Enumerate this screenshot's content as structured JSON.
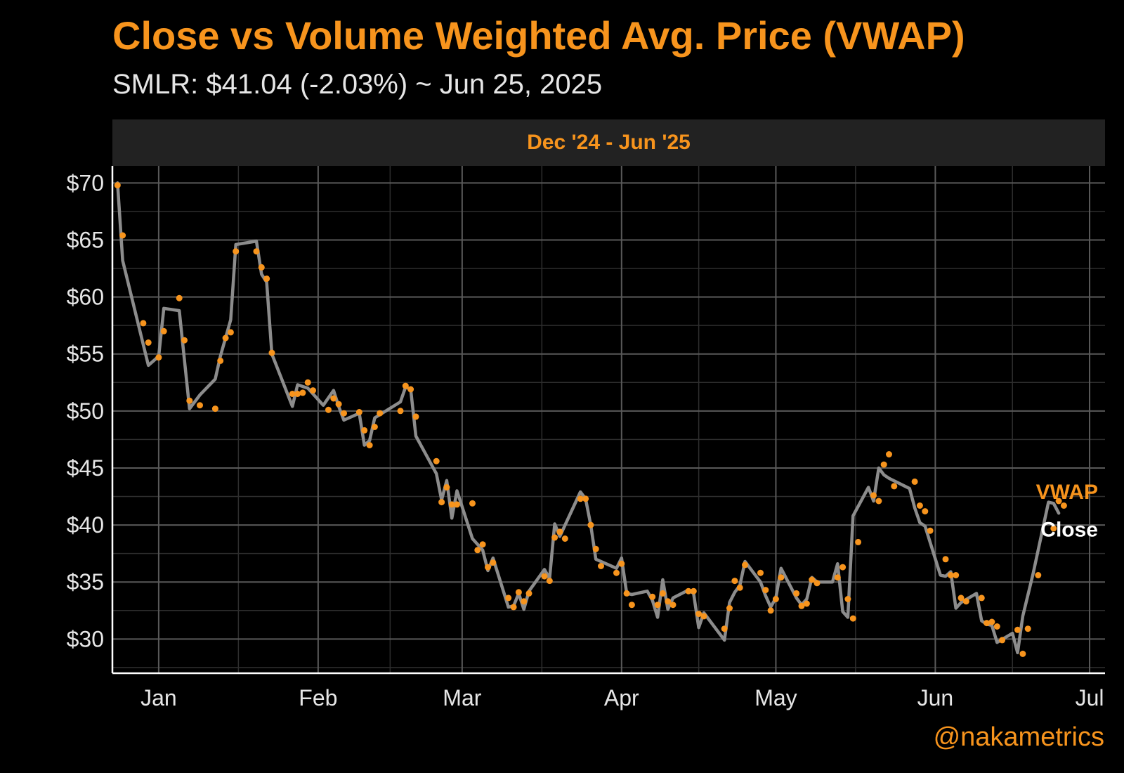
{
  "header": {
    "title": "Close vs Volume Weighted Avg. Price (VWAP)",
    "subtitle": "SMLR: $41.04 (-2.03%) ~ Jun 25, 2025",
    "facet_label": "Dec '24 - Jun '25",
    "watermark": "@nakametrics"
  },
  "colors": {
    "background": "#000000",
    "accent": "#f7941d",
    "close_line": "#8c8c8c",
    "grid_major": "#595959",
    "grid_minor": "#2e2e2e",
    "text": "#e6e6e6"
  },
  "chart_data": {
    "type": "line",
    "ylim": [
      27,
      71.5
    ],
    "xlim": [
      "2024-12-23",
      "2025-07-04"
    ],
    "y_ticks": [
      {
        "value": 30,
        "label": "$30"
      },
      {
        "value": 35,
        "label": "$35"
      },
      {
        "value": 40,
        "label": "$40"
      },
      {
        "value": 45,
        "label": "$45"
      },
      {
        "value": 50,
        "label": "$50"
      },
      {
        "value": 55,
        "label": "$55"
      },
      {
        "value": 60,
        "label": "$60"
      },
      {
        "value": 65,
        "label": "$65"
      },
      {
        "value": 70,
        "label": "$70"
      }
    ],
    "x_ticks": [
      {
        "date": "2025-01-01",
        "label": "Jan"
      },
      {
        "date": "2025-02-01",
        "label": "Feb"
      },
      {
        "date": "2025-03-01",
        "label": "Mar"
      },
      {
        "date": "2025-04-01",
        "label": "Apr"
      },
      {
        "date": "2025-05-01",
        "label": "May"
      },
      {
        "date": "2025-06-01",
        "label": "Jun"
      },
      {
        "date": "2025-07-01",
        "label": "Jul"
      }
    ],
    "grid": true,
    "series": [
      {
        "name": "Close",
        "style": "line",
        "color": "#8c8c8c",
        "points": [
          [
            "2024-12-24",
            70.0
          ],
          [
            "2024-12-25",
            63.2
          ],
          [
            "2024-12-27",
            59.5
          ],
          [
            "2024-12-30",
            54.0
          ],
          [
            "2025-01-01",
            54.8
          ],
          [
            "2025-01-02",
            59.0
          ],
          [
            "2025-01-05",
            58.8
          ],
          [
            "2025-01-07",
            50.2
          ],
          [
            "2025-01-09",
            51.4
          ],
          [
            "2025-01-12",
            52.8
          ],
          [
            "2025-01-13",
            54.8
          ],
          [
            "2025-01-15",
            58.0
          ],
          [
            "2025-01-16",
            64.6
          ],
          [
            "2025-01-20",
            64.9
          ],
          [
            "2025-01-21",
            62.0
          ],
          [
            "2025-01-22",
            61.3
          ],
          [
            "2025-01-23",
            55.0
          ],
          [
            "2025-01-27",
            50.4
          ],
          [
            "2025-01-28",
            52.3
          ],
          [
            "2025-01-30",
            52.0
          ],
          [
            "2025-02-02",
            50.5
          ],
          [
            "2025-02-04",
            51.8
          ],
          [
            "2025-02-05",
            50.4
          ],
          [
            "2025-02-06",
            49.2
          ],
          [
            "2025-02-09",
            49.8
          ],
          [
            "2025-02-10",
            47.0
          ],
          [
            "2025-02-11",
            47.4
          ],
          [
            "2025-02-12",
            49.4
          ],
          [
            "2025-02-17",
            50.8
          ],
          [
            "2025-02-18",
            52.1
          ],
          [
            "2025-02-19",
            51.9
          ],
          [
            "2025-02-20",
            47.8
          ],
          [
            "2025-02-24",
            44.5
          ],
          [
            "2025-02-25",
            42.2
          ],
          [
            "2025-02-26",
            43.9
          ],
          [
            "2025-02-27",
            40.6
          ],
          [
            "2025-02-28",
            43.0
          ],
          [
            "2025-03-03",
            38.8
          ],
          [
            "2025-03-05",
            37.8
          ],
          [
            "2025-03-06",
            36.0
          ],
          [
            "2025-03-07",
            37.1
          ],
          [
            "2025-03-10",
            32.8
          ],
          [
            "2025-03-11",
            32.9
          ],
          [
            "2025-03-12",
            34.0
          ],
          [
            "2025-03-13",
            32.6
          ],
          [
            "2025-03-14",
            34.2
          ],
          [
            "2025-03-17",
            36.1
          ],
          [
            "2025-03-18",
            35.3
          ],
          [
            "2025-03-19",
            40.1
          ],
          [
            "2025-03-20",
            39.0
          ],
          [
            "2025-03-24",
            42.9
          ],
          [
            "2025-03-25",
            42.3
          ],
          [
            "2025-03-26",
            40.0
          ],
          [
            "2025-03-27",
            37.0
          ],
          [
            "2025-03-31",
            36.2
          ],
          [
            "2025-04-01",
            37.1
          ],
          [
            "2025-04-02",
            34.0
          ],
          [
            "2025-04-03",
            33.9
          ],
          [
            "2025-04-06",
            34.2
          ],
          [
            "2025-04-07",
            33.4
          ],
          [
            "2025-04-08",
            31.9
          ],
          [
            "2025-04-09",
            35.2
          ],
          [
            "2025-04-10",
            32.6
          ],
          [
            "2025-04-11",
            33.6
          ],
          [
            "2025-04-14",
            34.3
          ],
          [
            "2025-04-15",
            34.0
          ],
          [
            "2025-04-16",
            31.0
          ],
          [
            "2025-04-17",
            32.3
          ],
          [
            "2025-04-21",
            29.9
          ],
          [
            "2025-04-22",
            33.2
          ],
          [
            "2025-04-23",
            34.1
          ],
          [
            "2025-04-24",
            34.7
          ],
          [
            "2025-04-25",
            36.8
          ],
          [
            "2025-04-28",
            35.0
          ],
          [
            "2025-04-29",
            33.8
          ],
          [
            "2025-04-30",
            32.8
          ],
          [
            "2025-05-01",
            33.6
          ],
          [
            "2025-05-02",
            36.2
          ],
          [
            "2025-05-05",
            33.6
          ],
          [
            "2025-05-06",
            33.0
          ],
          [
            "2025-05-07",
            33.5
          ],
          [
            "2025-05-08",
            35.4
          ],
          [
            "2025-05-09",
            35.0
          ],
          [
            "2025-05-12",
            35.0
          ],
          [
            "2025-05-13",
            36.6
          ],
          [
            "2025-05-14",
            32.4
          ],
          [
            "2025-05-15",
            31.9
          ],
          [
            "2025-05-16",
            40.8
          ],
          [
            "2025-05-19",
            43.3
          ],
          [
            "2025-05-20",
            42.1
          ],
          [
            "2025-05-21",
            45.0
          ],
          [
            "2025-05-22",
            44.4
          ],
          [
            "2025-05-23",
            44.1
          ],
          [
            "2025-05-27",
            43.2
          ],
          [
            "2025-05-28",
            41.5
          ],
          [
            "2025-05-29",
            40.2
          ],
          [
            "2025-05-30",
            39.9
          ],
          [
            "2025-06-02",
            35.6
          ],
          [
            "2025-06-03",
            35.5
          ],
          [
            "2025-06-04",
            35.9
          ],
          [
            "2025-06-05",
            32.7
          ],
          [
            "2025-06-06",
            33.2
          ],
          [
            "2025-06-09",
            34.0
          ],
          [
            "2025-06-10",
            31.6
          ],
          [
            "2025-06-11",
            31.3
          ],
          [
            "2025-06-12",
            31.2
          ],
          [
            "2025-06-13",
            29.7
          ],
          [
            "2025-06-16",
            30.5
          ],
          [
            "2025-06-17",
            28.8
          ],
          [
            "2025-06-18",
            32.0
          ],
          [
            "2025-06-20",
            35.7
          ],
          [
            "2025-06-23",
            42.0
          ],
          [
            "2025-06-24",
            41.9
          ],
          [
            "2025-06-25",
            41.04
          ]
        ]
      },
      {
        "name": "VWAP",
        "style": "points",
        "color": "#f7941d",
        "points": [
          [
            "2024-12-24",
            69.8
          ],
          [
            "2024-12-25",
            65.4
          ],
          [
            "2024-12-29",
            57.7
          ],
          [
            "2024-12-30",
            56.0
          ],
          [
            "2025-01-01",
            54.7
          ],
          [
            "2025-01-02",
            57.0
          ],
          [
            "2025-01-05",
            59.9
          ],
          [
            "2025-01-06",
            56.2
          ],
          [
            "2025-01-07",
            50.9
          ],
          [
            "2025-01-09",
            50.5
          ],
          [
            "2025-01-12",
            50.2
          ],
          [
            "2025-01-13",
            54.4
          ],
          [
            "2025-01-14",
            56.4
          ],
          [
            "2025-01-15",
            56.9
          ],
          [
            "2025-01-16",
            64.0
          ],
          [
            "2025-01-20",
            64.0
          ],
          [
            "2025-01-21",
            62.6
          ],
          [
            "2025-01-22",
            61.6
          ],
          [
            "2025-01-23",
            55.1
          ],
          [
            "2025-01-27",
            51.5
          ],
          [
            "2025-01-28",
            51.5
          ],
          [
            "2025-01-29",
            51.6
          ],
          [
            "2025-01-30",
            52.5
          ],
          [
            "2025-01-31",
            51.8
          ],
          [
            "2025-02-03",
            50.1
          ],
          [
            "2025-02-04",
            51.1
          ],
          [
            "2025-02-05",
            50.6
          ],
          [
            "2025-02-06",
            49.8
          ],
          [
            "2025-02-09",
            49.9
          ],
          [
            "2025-02-10",
            48.3
          ],
          [
            "2025-02-11",
            47.0
          ],
          [
            "2025-02-12",
            48.6
          ],
          [
            "2025-02-13",
            49.8
          ],
          [
            "2025-02-17",
            50.0
          ],
          [
            "2025-02-18",
            52.2
          ],
          [
            "2025-02-19",
            51.9
          ],
          [
            "2025-02-20",
            49.5
          ],
          [
            "2025-02-24",
            45.6
          ],
          [
            "2025-02-25",
            42.0
          ],
          [
            "2025-02-26",
            43.3
          ],
          [
            "2025-02-27",
            41.8
          ],
          [
            "2025-02-28",
            41.8
          ],
          [
            "2025-03-03",
            41.9
          ],
          [
            "2025-03-04",
            37.8
          ],
          [
            "2025-03-05",
            38.3
          ],
          [
            "2025-03-06",
            36.3
          ],
          [
            "2025-03-07",
            36.7
          ],
          [
            "2025-03-10",
            33.6
          ],
          [
            "2025-03-11",
            32.8
          ],
          [
            "2025-03-12",
            34.1
          ],
          [
            "2025-03-13",
            33.3
          ],
          [
            "2025-03-14",
            34.0
          ],
          [
            "2025-03-17",
            35.5
          ],
          [
            "2025-03-18",
            35.1
          ],
          [
            "2025-03-19",
            38.9
          ],
          [
            "2025-03-20",
            39.4
          ],
          [
            "2025-03-21",
            38.8
          ],
          [
            "2025-03-24",
            42.3
          ],
          [
            "2025-03-25",
            42.3
          ],
          [
            "2025-03-26",
            40.0
          ],
          [
            "2025-03-27",
            37.9
          ],
          [
            "2025-03-28",
            36.4
          ],
          [
            "2025-03-31",
            35.8
          ],
          [
            "2025-04-01",
            36.6
          ],
          [
            "2025-04-02",
            34.0
          ],
          [
            "2025-04-03",
            33.0
          ],
          [
            "2025-04-07",
            33.7
          ],
          [
            "2025-04-08",
            33.0
          ],
          [
            "2025-04-09",
            34.0
          ],
          [
            "2025-04-10",
            33.3
          ],
          [
            "2025-04-11",
            33.0
          ],
          [
            "2025-04-14",
            34.2
          ],
          [
            "2025-04-15",
            34.2
          ],
          [
            "2025-04-16",
            32.2
          ],
          [
            "2025-04-17",
            32.0
          ],
          [
            "2025-04-21",
            30.9
          ],
          [
            "2025-04-22",
            32.7
          ],
          [
            "2025-04-23",
            35.1
          ],
          [
            "2025-04-24",
            34.5
          ],
          [
            "2025-04-25",
            36.5
          ],
          [
            "2025-04-28",
            35.8
          ],
          [
            "2025-04-29",
            34.3
          ],
          [
            "2025-04-30",
            32.5
          ],
          [
            "2025-05-01",
            33.5
          ],
          [
            "2025-05-02",
            35.4
          ],
          [
            "2025-05-05",
            34.0
          ],
          [
            "2025-05-06",
            32.9
          ],
          [
            "2025-05-07",
            33.1
          ],
          [
            "2025-05-08",
            35.2
          ],
          [
            "2025-05-09",
            34.9
          ],
          [
            "2025-05-13",
            35.4
          ],
          [
            "2025-05-14",
            36.3
          ],
          [
            "2025-05-15",
            33.5
          ],
          [
            "2025-05-16",
            31.8
          ],
          [
            "2025-05-17",
            38.5
          ],
          [
            "2025-05-20",
            42.6
          ],
          [
            "2025-05-21",
            42.1
          ],
          [
            "2025-05-22",
            45.3
          ],
          [
            "2025-05-23",
            46.2
          ],
          [
            "2025-05-24",
            43.4
          ],
          [
            "2025-05-28",
            43.8
          ],
          [
            "2025-05-29",
            41.7
          ],
          [
            "2025-05-30",
            41.2
          ],
          [
            "2025-05-31",
            39.5
          ],
          [
            "2025-06-03",
            37.0
          ],
          [
            "2025-06-04",
            35.6
          ],
          [
            "2025-06-05",
            35.6
          ],
          [
            "2025-06-06",
            33.6
          ],
          [
            "2025-06-07",
            33.3
          ],
          [
            "2025-06-10",
            33.6
          ],
          [
            "2025-06-11",
            31.4
          ],
          [
            "2025-06-12",
            31.5
          ],
          [
            "2025-06-13",
            31.1
          ],
          [
            "2025-06-14",
            29.9
          ],
          [
            "2025-06-17",
            30.8
          ],
          [
            "2025-06-18",
            28.7
          ],
          [
            "2025-06-19",
            30.9
          ],
          [
            "2025-06-21",
            35.6
          ],
          [
            "2025-06-24",
            39.7
          ],
          [
            "2025-06-25",
            42.1
          ],
          [
            "2025-06-26",
            41.7
          ]
        ]
      }
    ],
    "end_labels": [
      {
        "series": "VWAP",
        "text": "VWAP",
        "color": "#f7941d",
        "value": 42.9
      },
      {
        "series": "Close",
        "text": "Close",
        "color": "#ffffff",
        "value": 39.6
      }
    ]
  }
}
